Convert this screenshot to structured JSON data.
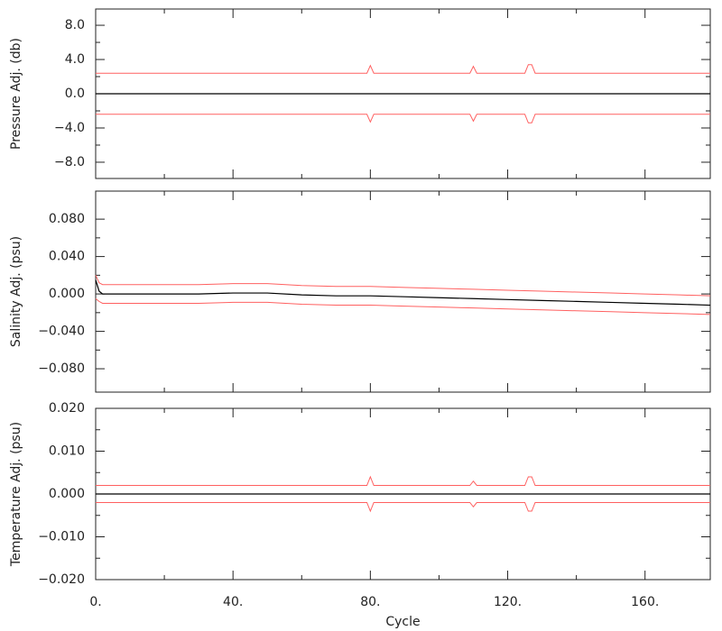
{
  "chart_data": [
    {
      "type": "line",
      "ylabel": "Pressure Adj. (db)",
      "x": [
        0,
        79,
        80,
        81,
        109,
        110,
        111,
        125,
        126,
        127,
        128,
        179
      ],
      "xlim": [
        0,
        179
      ],
      "ylim": [
        -9.9,
        9.9
      ],
      "yticks": [
        {
          "value": 8,
          "label": "8.0"
        },
        {
          "value": 4,
          "label": "4.0"
        },
        {
          "value": 0,
          "label": "0.0"
        },
        {
          "value": -4,
          "label": "−4.0"
        },
        {
          "value": -8,
          "label": "−8.0"
        }
      ],
      "series": [
        {
          "color": "#ff6060",
          "values": [
            2.4,
            2.4,
            3.3,
            2.4,
            2.4,
            3.2,
            2.4,
            2.4,
            3.4,
            3.4,
            2.4,
            2.4
          ]
        },
        {
          "color": "#000000",
          "values": [
            0,
            0,
            0,
            0,
            0,
            0,
            0,
            0,
            0,
            0,
            0,
            0
          ]
        },
        {
          "color": "#ff6060",
          "values": [
            -2.4,
            -2.4,
            -3.3,
            -2.4,
            -2.4,
            -3.2,
            -2.4,
            -2.4,
            -3.4,
            -3.4,
            -2.4,
            -2.4
          ]
        }
      ]
    },
    {
      "type": "line",
      "ylabel": "Salinity Adj. (psu)",
      "x": [
        0,
        1,
        2,
        10,
        20,
        30,
        40,
        50,
        60,
        70,
        80,
        90,
        100,
        110,
        120,
        130,
        140,
        150,
        160,
        170,
        179
      ],
      "xlim": [
        0,
        179
      ],
      "ylim": [
        -0.105,
        0.11
      ],
      "yticks": [
        {
          "value": 0.08,
          "label": "0.080"
        },
        {
          "value": 0.04,
          "label": "0.040"
        },
        {
          "value": 0,
          "label": "0.000"
        },
        {
          "value": -0.04,
          "label": "−0.040"
        },
        {
          "value": -0.08,
          "label": "−0.080"
        }
      ],
      "series": [
        {
          "color": "#ff6060",
          "values": [
            0.02,
            0.012,
            0.01,
            0.01,
            0.01,
            0.01,
            0.011,
            0.011,
            0.009,
            0.008,
            0.008,
            0.007,
            0.006,
            0.005,
            0.004,
            0.003,
            0.002,
            0.001,
            0,
            -0.001,
            -0.002
          ]
        },
        {
          "color": "#000000",
          "values": [
            0.015,
            0.003,
            0,
            0,
            0,
            0,
            0.001,
            0.001,
            -0.001,
            -0.002,
            -0.002,
            -0.003,
            -0.004,
            -0.005,
            -0.006,
            -0.007,
            -0.008,
            -0.009,
            -0.01,
            -0.011,
            -0.012
          ]
        },
        {
          "color": "#ff6060",
          "values": [
            -0.005,
            -0.008,
            -0.01,
            -0.01,
            -0.01,
            -0.01,
            -0.009,
            -0.009,
            -0.011,
            -0.012,
            -0.012,
            -0.013,
            -0.014,
            -0.015,
            -0.016,
            -0.017,
            -0.018,
            -0.019,
            -0.02,
            -0.021,
            -0.022
          ]
        }
      ]
    },
    {
      "type": "line",
      "ylabel": "Temperature Adj. (psu)",
      "xlabel": "Cycle",
      "x": [
        0,
        79,
        80,
        81,
        109,
        110,
        111,
        125,
        126,
        127,
        128,
        179
      ],
      "xlim": [
        0,
        179
      ],
      "ylim": [
        -0.02,
        0.02
      ],
      "xticks": [
        {
          "value": 0,
          "label": "0."
        },
        {
          "value": 40,
          "label": "40."
        },
        {
          "value": 80,
          "label": "80."
        },
        {
          "value": 120,
          "label": "120."
        },
        {
          "value": 160,
          "label": "160."
        }
      ],
      "yticks": [
        {
          "value": 0.02,
          "label": "0.020"
        },
        {
          "value": 0.01,
          "label": "0.010"
        },
        {
          "value": 0,
          "label": "0.000"
        },
        {
          "value": -0.01,
          "label": "−0.010"
        },
        {
          "value": -0.02,
          "label": "−0.020"
        }
      ],
      "series": [
        {
          "color": "#ff6060",
          "values": [
            0.002,
            0.002,
            0.004,
            0.002,
            0.002,
            0.003,
            0.002,
            0.002,
            0.004,
            0.004,
            0.002,
            0.002
          ]
        },
        {
          "color": "#000000",
          "values": [
            0,
            0,
            0,
            0,
            0,
            0,
            0,
            0,
            0,
            0,
            0,
            0
          ]
        },
        {
          "color": "#ff6060",
          "values": [
            -0.002,
            -0.002,
            -0.004,
            -0.002,
            -0.002,
            -0.003,
            -0.002,
            -0.002,
            -0.004,
            -0.004,
            -0.002,
            -0.002
          ]
        }
      ]
    }
  ]
}
